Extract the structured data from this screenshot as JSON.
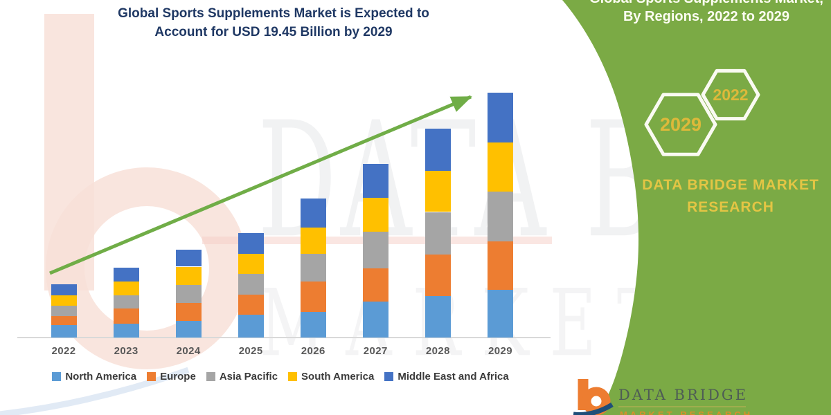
{
  "title": {
    "line1": "Global Sports Supplements Market is Expected to",
    "line2": "Account for USD 19.45 Billion by 2029"
  },
  "chart_data": {
    "type": "bar",
    "stacked": true,
    "title": "Global Sports Supplements Market is Expected to Account for USD 19.45 Billion by 2029",
    "unit": "USD Billion",
    "categories": [
      "2022",
      "2023",
      "2024",
      "2025",
      "2026",
      "2027",
      "2028",
      "2029"
    ],
    "series": [
      {
        "name": "North America",
        "color": "#5B9BD5",
        "values": [
          0.99,
          1.1,
          1.32,
          1.81,
          2.05,
          2.84,
          3.3,
          3.8
        ]
      },
      {
        "name": "Europe",
        "color": "#ED7D31",
        "values": [
          0.71,
          1.21,
          1.43,
          1.61,
          2.42,
          2.65,
          3.3,
          3.85
        ]
      },
      {
        "name": "Asia Pacific",
        "color": "#A5A5A5",
        "values": [
          0.82,
          1.04,
          1.41,
          1.65,
          2.16,
          2.9,
          3.37,
          3.95
        ]
      },
      {
        "name": "South America",
        "color": "#FFC000",
        "values": [
          0.82,
          1.1,
          1.47,
          1.59,
          2.11,
          2.69,
          3.26,
          3.9
        ]
      },
      {
        "name": "Middle East and Africa",
        "color": "#4472C4",
        "values": [
          0.88,
          1.1,
          1.37,
          1.65,
          2.29,
          2.73,
          3.35,
          3.95
        ]
      }
    ],
    "totals_usd_billion": [
      4.22,
      5.55,
      7.0,
      8.31,
      11.03,
      13.81,
      16.58,
      19.45
    ],
    "ylim": [
      0,
      20
    ],
    "gridlines": false,
    "legend_position": "bottom",
    "trend_arrow": true,
    "trend_arrow_color": "#70AD47"
  },
  "side_panel": {
    "heading_line1": "Global Sports Supplements Market,",
    "heading_line2": "By Regions, 2022 to 2029",
    "hexagon_large_label": "2029",
    "hexagon_small_label": "2022",
    "brand_line1": "DATA BRIDGE MARKET",
    "brand_line2": "RESEARCH",
    "background_color": "#76A73E",
    "accent_text_color": "#E3C544"
  },
  "footer_logo": {
    "brand": "DATA BRIDGE",
    "sub": "MARKET RESEARCH"
  },
  "watermark": {
    "line1": "DATA BRIDGE",
    "line2": "MARKET RESEARCH"
  }
}
